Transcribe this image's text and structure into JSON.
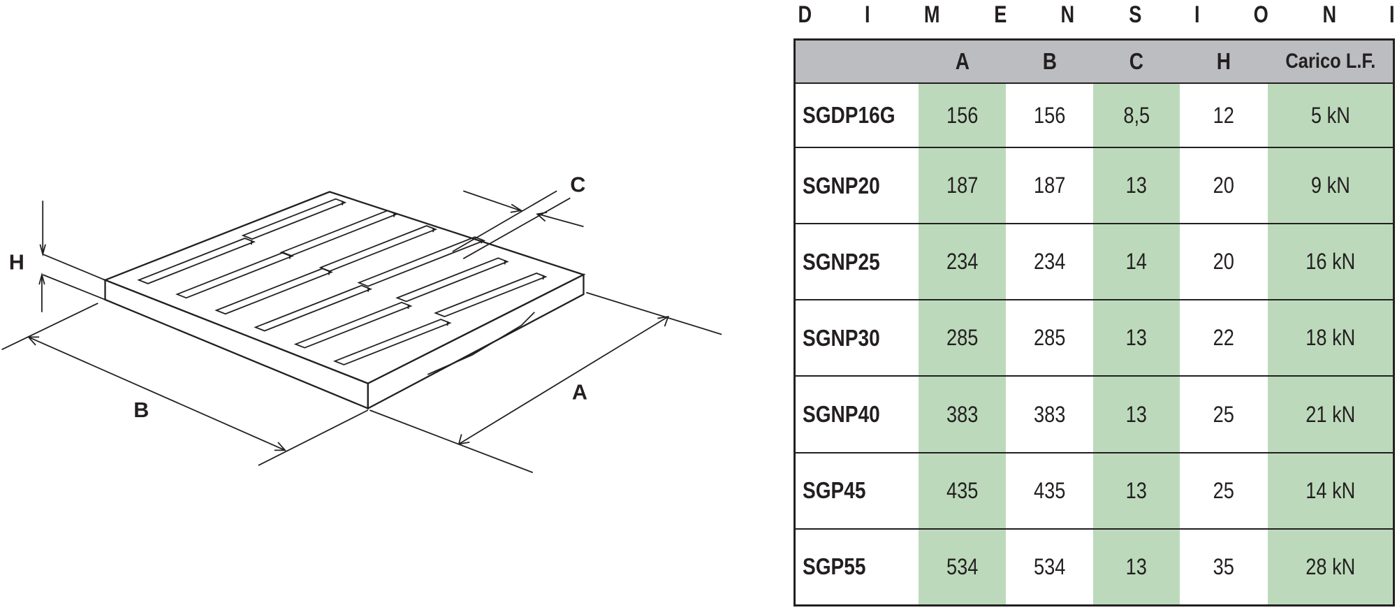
{
  "title_letters": [
    "D",
    "I",
    "M",
    "E",
    "N",
    "S",
    "I",
    "O",
    "N",
    "I"
  ],
  "drawing": {
    "labels": {
      "H": "H",
      "B": "B",
      "A": "A",
      "C": "C"
    }
  },
  "table": {
    "headers": [
      "",
      "A",
      "B",
      "C",
      "H",
      "Carico L.F."
    ],
    "rows": [
      [
        "SGDP16G",
        "156",
        "156",
        "8,5",
        "12",
        "5 kN"
      ],
      [
        "SGNP20",
        "187",
        "187",
        "13",
        "20",
        "9 kN"
      ],
      [
        "SGNP25",
        "234",
        "234",
        "14",
        "20",
        "16 kN"
      ],
      [
        "SGNP30",
        "285",
        "285",
        "13",
        "22",
        "18 kN"
      ],
      [
        "SGNP40",
        "383",
        "383",
        "13",
        "25",
        "21 kN"
      ],
      [
        "SGP45",
        "435",
        "435",
        "13",
        "25",
        "14 kN"
      ],
      [
        "SGP55",
        "534",
        "534",
        "13",
        "35",
        "28 kN"
      ]
    ]
  },
  "colors": {
    "header_bg": "#bcbdc0",
    "highlight_col": "#bcdabb",
    "line": "#231f20"
  }
}
